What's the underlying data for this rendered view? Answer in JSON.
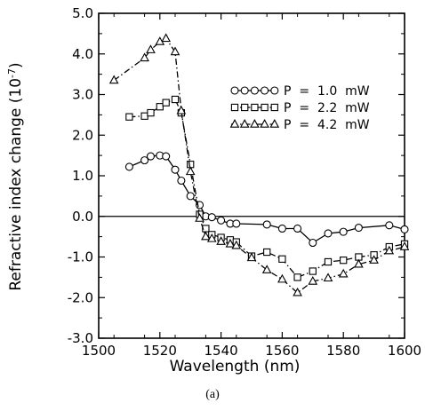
{
  "chart_data": {
    "type": "line",
    "xlabel": "Wavelength (nm)",
    "ylabel": "Refractive index change (10",
    "ylabel_exp": "-7",
    "ylabel_close": ")",
    "xlim": [
      1500,
      1600
    ],
    "ylim": [
      -3.0,
      5.0
    ],
    "x_ticks": [
      1500,
      1520,
      1540,
      1560,
      1580,
      1600
    ],
    "x_tick_labels": [
      "1500",
      "1520",
      "1540",
      "1560",
      "1580",
      "1600"
    ],
    "y_ticks": [
      -3.0,
      -2.0,
      -1.0,
      0.0,
      1.0,
      2.0,
      3.0,
      4.0,
      5.0
    ],
    "y_tick_labels": [
      "-3.0",
      "-2.0",
      "-1.0",
      "0.0",
      "1.0",
      "2.0",
      "3.0",
      "4.0",
      "5.0"
    ],
    "reference_line_y": 0.0,
    "grid": false,
    "legend_position": "top-right",
    "caption": "(a)",
    "series": [
      {
        "name": "P = 1.0 mW",
        "legend_label": "P  =  1.0  mW",
        "marker": "circle",
        "line_style": "solid",
        "x": [
          1510,
          1515,
          1517,
          1520,
          1522,
          1525,
          1527,
          1530,
          1533,
          1535,
          1537,
          1540,
          1543,
          1545,
          1555,
          1560,
          1565,
          1570,
          1575,
          1580,
          1585,
          1595,
          1600
        ],
        "y": [
          1.22,
          1.38,
          1.48,
          1.5,
          1.48,
          1.15,
          0.88,
          0.5,
          0.28,
          0.0,
          -0.02,
          -0.1,
          -0.18,
          -0.18,
          -0.2,
          -0.3,
          -0.3,
          -0.65,
          -0.42,
          -0.38,
          -0.28,
          -0.22,
          -0.32
        ]
      },
      {
        "name": "P = 2.2 mW",
        "legend_label": "P  =  2.2  mW",
        "marker": "square",
        "line_style": "dash-dot",
        "x": [
          1510,
          1515,
          1517,
          1520,
          1522,
          1525,
          1527,
          1530,
          1533,
          1535,
          1537,
          1540,
          1543,
          1545,
          1550,
          1555,
          1560,
          1565,
          1570,
          1575,
          1580,
          1585,
          1590,
          1595,
          1600
        ],
        "y": [
          2.45,
          2.47,
          2.55,
          2.7,
          2.8,
          2.88,
          2.55,
          1.28,
          0.05,
          -0.3,
          -0.45,
          -0.52,
          -0.58,
          -0.63,
          -0.98,
          -0.88,
          -1.05,
          -1.5,
          -1.35,
          -1.12,
          -1.08,
          -1.0,
          -0.95,
          -0.75,
          -0.68
        ]
      },
      {
        "name": "P = 4.2 mW",
        "legend_label": "P  =  4.2  mW",
        "marker": "triangle",
        "line_style": "dash-dot",
        "x": [
          1505,
          1515,
          1517,
          1520,
          1522,
          1525,
          1527,
          1530,
          1533,
          1535,
          1537,
          1540,
          1543,
          1545,
          1550,
          1555,
          1560,
          1565,
          1570,
          1575,
          1580,
          1585,
          1590,
          1595,
          1600
        ],
        "y": [
          3.35,
          3.9,
          4.1,
          4.3,
          4.38,
          4.05,
          2.6,
          1.1,
          -0.05,
          -0.5,
          -0.55,
          -0.62,
          -0.68,
          -0.72,
          -1.02,
          -1.32,
          -1.55,
          -1.88,
          -1.6,
          -1.52,
          -1.42,
          -1.18,
          -1.08,
          -0.85,
          -0.75
        ]
      }
    ]
  }
}
